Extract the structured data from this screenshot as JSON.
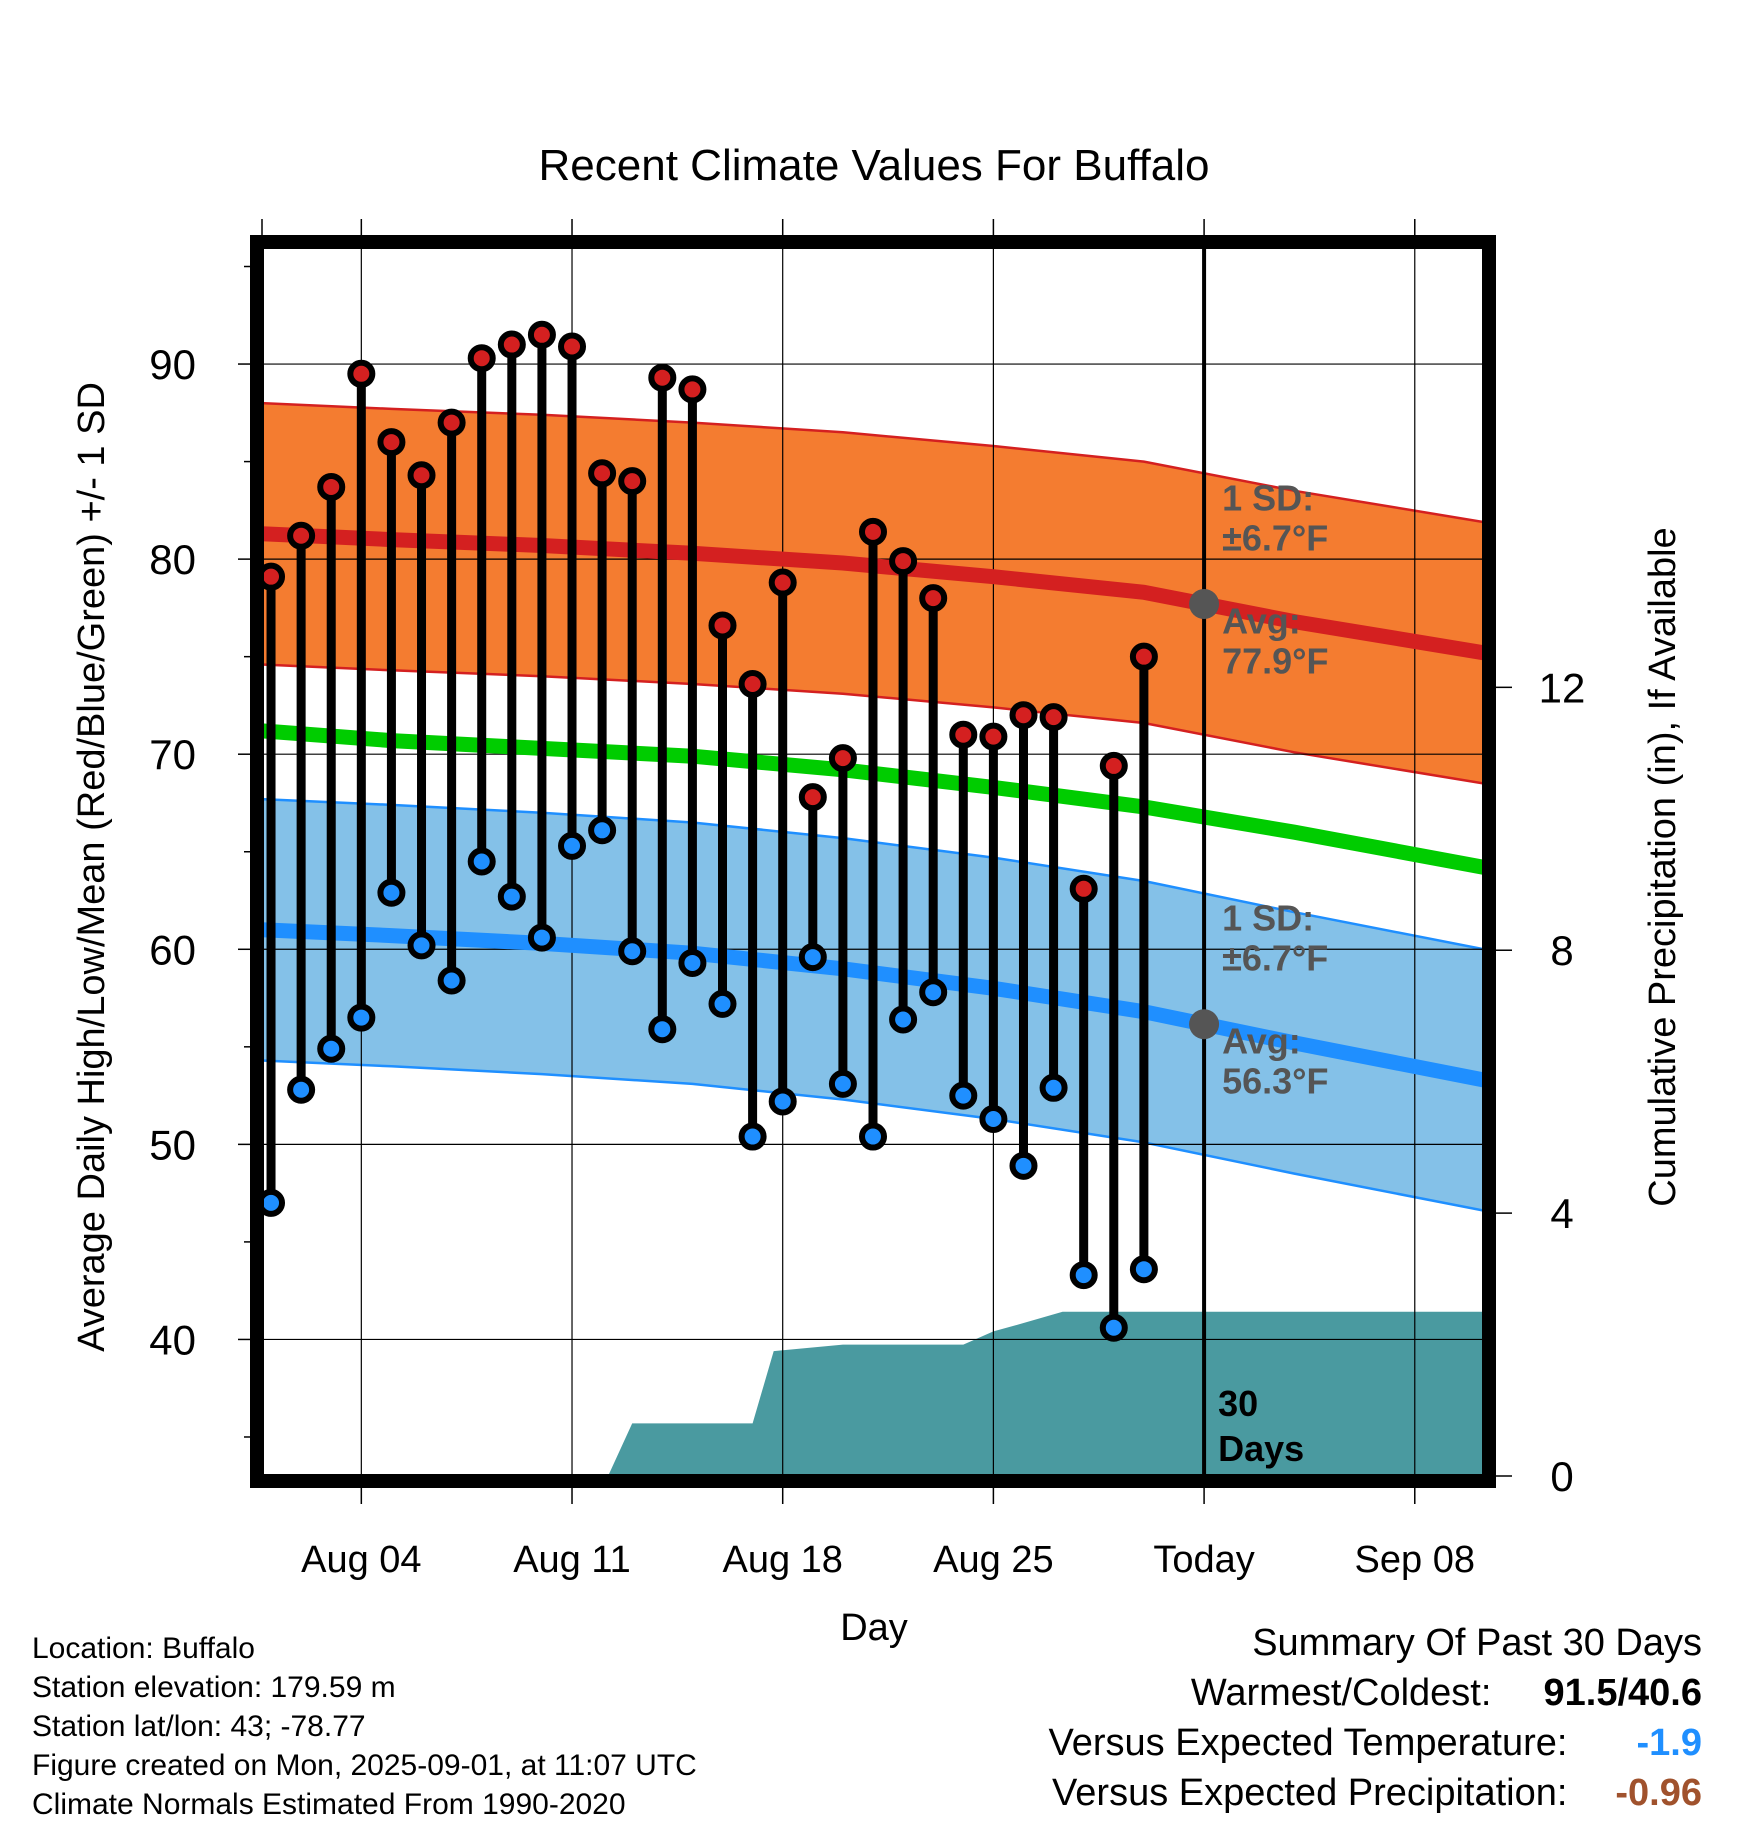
{
  "chart_data": {
    "type": "line",
    "title": "Recent Climate Values For Buffalo",
    "xlabel": "Day",
    "ylabel": "Average Daily High/Low/Mean (Red/Blue/Green) +/- 1 SD",
    "y2label": "Cumulative Precipitation (in), If Available",
    "ylim": [
      33,
      96
    ],
    "y2lim": [
      0,
      18.7
    ],
    "yticks": [
      40,
      50,
      60,
      70,
      80,
      90
    ],
    "y2ticks": [
      0,
      4,
      8,
      12
    ],
    "xlim": [
      0.7,
      41.3
    ],
    "xticks": [
      {
        "x": 4,
        "label": "Aug 04"
      },
      {
        "x": 11,
        "label": "Aug 11"
      },
      {
        "x": 18,
        "label": "Aug 18"
      },
      {
        "x": 25,
        "label": "Aug 25"
      },
      {
        "x": 32,
        "label": "Today"
      },
      {
        "x": 39,
        "label": "Sep 08"
      }
    ],
    "grid": true,
    "days": [
      1,
      2,
      3,
      4,
      5,
      6,
      7,
      8,
      9,
      10,
      11,
      12,
      13,
      14,
      15,
      16,
      17,
      18,
      19,
      20,
      21,
      22,
      23,
      24,
      25,
      26,
      27,
      28,
      29,
      30,
      31
    ],
    "daily_high": [
      79.1,
      81.2,
      83.7,
      89.5,
      86.0,
      84.3,
      87.0,
      90.3,
      91.0,
      91.5,
      90.9,
      84.4,
      84.0,
      89.3,
      88.7,
      76.6,
      73.6,
      78.8,
      67.8,
      69.8,
      81.4,
      79.9,
      78.0,
      71.0,
      70.9,
      72.0,
      71.9,
      63.1,
      69.4,
      75.0,
      null
    ],
    "daily_low": [
      47.0,
      52.8,
      54.9,
      56.5,
      62.9,
      60.2,
      58.4,
      64.5,
      62.7,
      60.6,
      65.3,
      66.1,
      59.9,
      55.9,
      59.3,
      57.2,
      50.4,
      52.2,
      59.6,
      53.1,
      50.4,
      56.4,
      57.8,
      52.5,
      51.3,
      48.9,
      52.9,
      43.3,
      40.6,
      43.6,
      null
    ],
    "normal_days": [
      0.7,
      5,
      10,
      15,
      20,
      25,
      30,
      35,
      41.3
    ],
    "normal_high": [
      81.3,
      81.0,
      80.7,
      80.3,
      79.8,
      79.1,
      78.3,
      76.8,
      75.2
    ],
    "normal_low": [
      61.0,
      60.7,
      60.3,
      59.8,
      59.0,
      58.0,
      56.8,
      55.2,
      53.3
    ],
    "normal_mean": [
      71.2,
      70.7,
      70.3,
      69.9,
      69.2,
      68.3,
      67.3,
      66.0,
      64.2
    ],
    "sd": 6.7,
    "precip_days": [
      12.2,
      13.0,
      17.0,
      17.7,
      20.0,
      24.0,
      25.0,
      25.8,
      27.3,
      41.3
    ],
    "precip_cum": [
      0.0,
      0.8,
      0.8,
      1.9,
      2.0,
      2.0,
      2.2,
      2.3,
      2.5,
      2.5
    ],
    "today_x": 32,
    "annotations": {
      "high_sd": [
        "1 SD:",
        "±6.7°F"
      ],
      "high_avg": [
        "Avg:",
        "77.9°F"
      ],
      "low_sd": [
        "1 SD:",
        "±6.7°F"
      ],
      "low_avg": [
        "Avg:",
        "56.3°F"
      ],
      "precip_days": [
        "30",
        "Days"
      ]
    },
    "colors": {
      "high_band": "#f47c30",
      "high_line": "#d42020",
      "low_band": "#84c1e8",
      "low_line": "#1f8fff",
      "mean_line": "#00cc00",
      "precip": "#4a9aa0",
      "high_dot": "#d42020",
      "low_dot": "#1f8fff",
      "today_dot": "#555555"
    }
  },
  "info": {
    "location": "Location: Buffalo",
    "elevation": "Station elevation: 179.59 m",
    "latlon": "Station lat/lon: 43; -78.77",
    "created": "Figure created on Mon, 2025-09-01, at 11:07 UTC",
    "normals": "Climate Normals Estimated From 1990-2020"
  },
  "summary": {
    "title": "Summary Of Past 30 Days",
    "warm_cold_label": "Warmest/Coldest:",
    "warm_cold_value": "91.5/40.6",
    "temp_label": "Versus Expected Temperature:",
    "temp_value": "-1.9",
    "temp_color": "#1f8fff",
    "precip_label": "Versus Expected Precipitation:",
    "precip_value": "-0.96",
    "precip_color": "#a0522d"
  }
}
